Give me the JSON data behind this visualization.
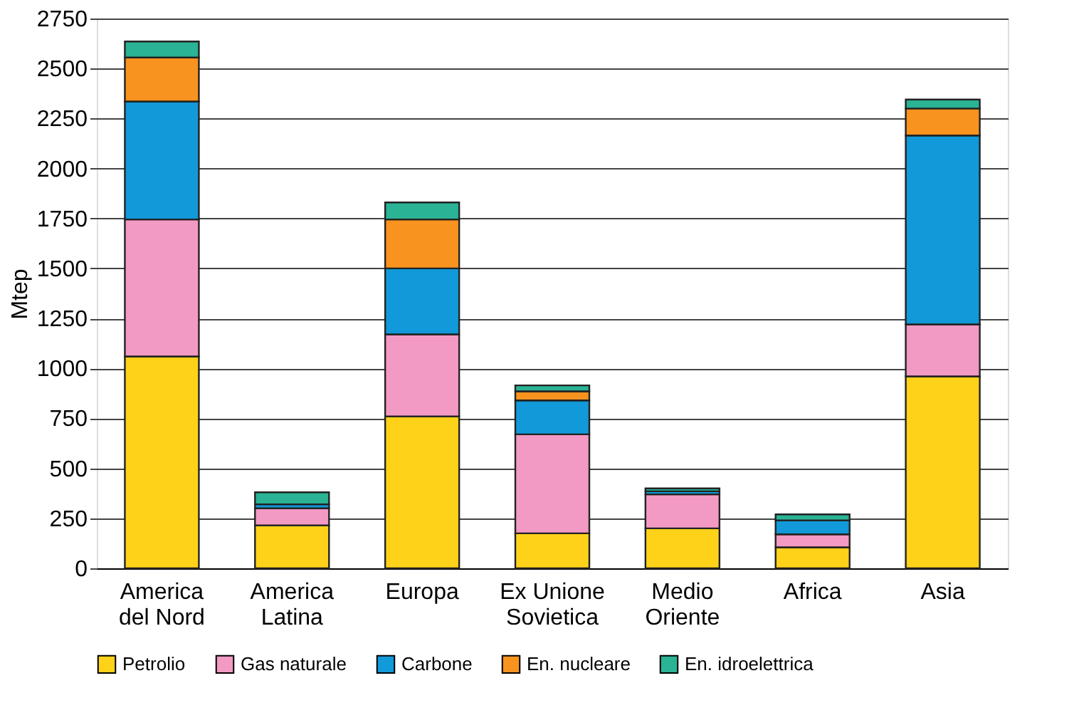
{
  "chart_data": {
    "type": "bar",
    "stacked": true,
    "ylabel": "Mtep",
    "categories": [
      "America\ndel Nord",
      "America\nLatina",
      "Europa",
      "Ex Unione\nSovietica",
      "Medio\nOriente",
      "Africa",
      "Asia"
    ],
    "series": [
      {
        "name": "Petrolio",
        "color": "#ffd21a",
        "values": [
          1060,
          215,
          760,
          175,
          200,
          105,
          960
        ]
      },
      {
        "name": "Gas naturale",
        "color": "#f29ac4",
        "values": [
          685,
          85,
          410,
          495,
          170,
          65,
          260
        ]
      },
      {
        "name": "Carbone",
        "color": "#1199d9",
        "values": [
          590,
          20,
          330,
          170,
          15,
          70,
          945
        ]
      },
      {
        "name": "En. nucleare",
        "color": "#f7931e",
        "values": [
          220,
          null,
          245,
          45,
          null,
          null,
          135
        ]
      },
      {
        "name": "En. idroelettrica",
        "color": "#2ab394",
        "values": [
          80,
          60,
          85,
          30,
          15,
          30,
          45
        ]
      }
    ],
    "ylim": [
      0,
      2750
    ],
    "yticks": [
      0,
      250,
      500,
      750,
      1000,
      1250,
      1500,
      1750,
      2000,
      2250,
      2500,
      2750
    ],
    "grid": "y",
    "legend": "bottom"
  }
}
